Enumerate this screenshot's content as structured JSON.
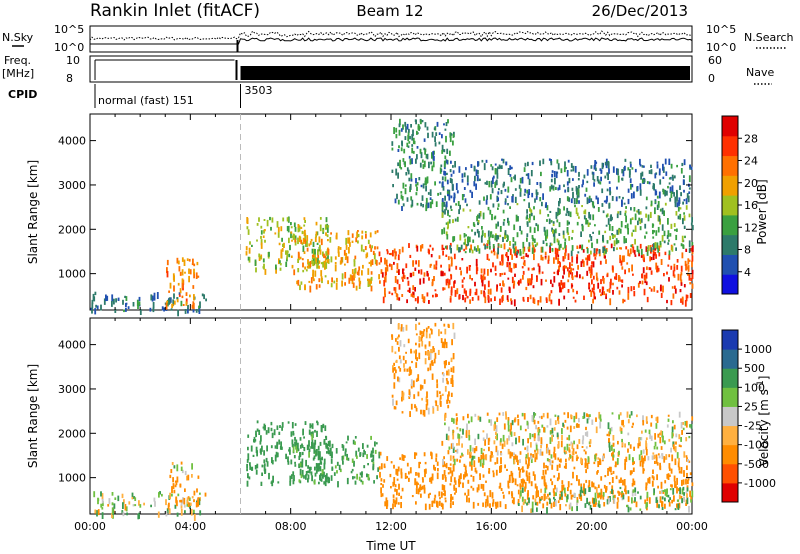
{
  "header": {
    "station": "Rankin Inlet (fitACF)",
    "beam": "Beam 12",
    "date": "26/Dec/2013"
  },
  "strip": {
    "nsky_label": "N.Sky",
    "nsky_ticks": [
      "10^5",
      "10^0"
    ],
    "nsearch_label": "N.Search",
    "freq_label": "Freq.",
    "freq_unit": "[MHz]",
    "freq_ticks": [
      "10",
      "8"
    ],
    "nave_label": "Nave",
    "nave_ticks": [
      "60",
      "0"
    ],
    "cpid_label": "CPID",
    "cpid_entries": [
      "normal (fast) 151",
      "3503"
    ],
    "cpid_change_hour": 6.0
  },
  "colors": {
    "power_scale": [
      "#1010e0",
      "#2050b0",
      "#2d7a6a",
      "#3aa040",
      "#a0c020",
      "#f0a000",
      "#ff7000",
      "#ff3000",
      "#e00000"
    ],
    "velocity_scale": [
      "#e00000",
      "#ff5000",
      "#ff8c00",
      "#ffb040",
      "#c8c8c8",
      "#70c040",
      "#3a9a50",
      "#2a6a90",
      "#1a3ab0"
    ]
  },
  "chart_data": [
    {
      "type": "heatmap",
      "panel": "power",
      "xlabel": "",
      "ylabel": "Slant Range [km]",
      "x_range_hours": [
        0,
        24
      ],
      "y_range_km": [
        180,
        4600
      ],
      "yticks": [
        1000,
        2000,
        3000,
        4000
      ],
      "colorbar_label": "Power [dB]",
      "colorbar_ticks": [
        4,
        8,
        12,
        16,
        20,
        24,
        28
      ],
      "colorbar_range": [
        0,
        32
      ],
      "regions": [
        {
          "t0": 0.0,
          "t1": 4.6,
          "r0": 180,
          "r1": 600,
          "value": 8
        },
        {
          "t0": 3.0,
          "t1": 4.3,
          "r0": 300,
          "r1": 1400,
          "value": 22
        },
        {
          "t0": 6.2,
          "t1": 9.5,
          "r0": 1100,
          "r1": 2300,
          "value": 16
        },
        {
          "t0": 8.0,
          "t1": 11.5,
          "r0": 700,
          "r1": 2000,
          "value": 20
        },
        {
          "t0": 11.5,
          "t1": 24.0,
          "r0": 400,
          "r1": 1700,
          "value": 26
        },
        {
          "t0": 12.0,
          "t1": 14.5,
          "r0": 2500,
          "r1": 4500,
          "value": 10
        },
        {
          "t0": 14.0,
          "t1": 24.0,
          "r0": 1500,
          "r1": 2600,
          "value": 12
        },
        {
          "t0": 14.0,
          "t1": 24.0,
          "r0": 2600,
          "r1": 3600,
          "value": 8
        }
      ]
    },
    {
      "type": "heatmap",
      "panel": "velocity",
      "xlabel": "Time UT",
      "ylabel": "Slant Range [km]",
      "x_range_hours": [
        0,
        24
      ],
      "y_range_km": [
        180,
        4600
      ],
      "xticks": [
        "00:00",
        "04:00",
        "08:00",
        "12:00",
        "16:00",
        "20:00",
        "00:00"
      ],
      "yticks": [
        1000,
        2000,
        3000,
        4000
      ],
      "colorbar_label": "Velocity [m s^-1]",
      "colorbar_ticks": [
        "1000",
        "500",
        "100",
        "25",
        "-25",
        "-100",
        "-500",
        "-1000"
      ],
      "regions": [
        {
          "t0": 0.0,
          "t1": 4.6,
          "r0": 180,
          "r1": 700,
          "value": 25
        },
        {
          "t0": 3.0,
          "t1": 4.3,
          "r0": 400,
          "r1": 1100,
          "value": -200
        },
        {
          "t0": 3.2,
          "t1": 4.2,
          "r0": 1150,
          "r1": 1400,
          "value": 0
        },
        {
          "t0": 6.2,
          "t1": 9.5,
          "r0": 900,
          "r1": 2300,
          "value": 300
        },
        {
          "t0": 8.0,
          "t1": 11.5,
          "r0": 900,
          "r1": 2000,
          "value": 200
        },
        {
          "t0": 11.5,
          "t1": 24.0,
          "r0": 400,
          "r1": 1600,
          "value": -300
        },
        {
          "t0": 14.0,
          "t1": 24.0,
          "r0": 1400,
          "r1": 2500,
          "value": -40
        },
        {
          "t0": 17.0,
          "t1": 24.0,
          "r0": 300,
          "r1": 800,
          "value": 80
        },
        {
          "t0": 12.0,
          "t1": 14.5,
          "r0": 2500,
          "r1": 4500,
          "value": -150
        }
      ]
    }
  ]
}
